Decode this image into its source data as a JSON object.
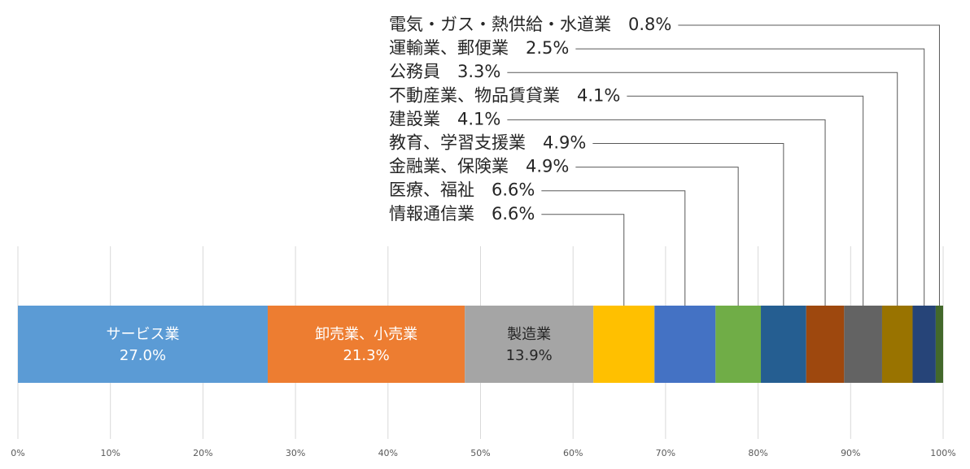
{
  "chart_data": {
    "type": "bar",
    "orientation": "horizontal",
    "stacked": "100%",
    "title": "",
    "xlabel": "",
    "ylabel": "",
    "xlim": [
      0,
      100
    ],
    "tick_labels": [
      "0%",
      "10%",
      "20%",
      "30%",
      "40%",
      "50%",
      "60%",
      "70%",
      "80%",
      "90%",
      "100%"
    ],
    "grid": true,
    "legend": "none",
    "series": [
      {
        "name": "サービス業",
        "value": 27.0,
        "label": "27.0%",
        "color": "#5B9BD5",
        "label_position": "inside"
      },
      {
        "name": "卸売業、小売業",
        "value": 21.3,
        "label": "21.3%",
        "color": "#ED7D31",
        "label_position": "inside"
      },
      {
        "name": "製造業",
        "value": 13.9,
        "label": "13.9%",
        "color": "#A5A5A5",
        "label_position": "inside"
      },
      {
        "name": "情報通信業",
        "value": 6.6,
        "label": "6.6%",
        "color": "#FFC000",
        "label_position": "callout"
      },
      {
        "name": "医療、福祉",
        "value": 6.6,
        "label": "6.6%",
        "color": "#4472C4",
        "label_position": "callout"
      },
      {
        "name": "金融業、保険業",
        "value": 4.9,
        "label": "4.9%",
        "color": "#70AD47",
        "label_position": "callout"
      },
      {
        "name": "教育、学習支援業",
        "value": 4.9,
        "label": "4.9%",
        "color": "#255E91",
        "label_position": "callout"
      },
      {
        "name": "建設業",
        "value": 4.1,
        "label": "4.1%",
        "color": "#9E480E",
        "label_position": "callout"
      },
      {
        "name": "不動産業、物品賃貸業",
        "value": 4.1,
        "label": "4.1%",
        "color": "#636363",
        "label_position": "callout"
      },
      {
        "name": "公務員",
        "value": 3.3,
        "label": "3.3%",
        "color": "#997300",
        "label_position": "callout"
      },
      {
        "name": "運輸業、郵便業",
        "value": 2.5,
        "label": "2.5%",
        "color": "#264478",
        "label_position": "callout"
      },
      {
        "name": "電気・ガス・熱供給・水道業",
        "value": 0.8,
        "label": "0.8%",
        "color": "#43682B",
        "label_position": "callout"
      }
    ]
  }
}
